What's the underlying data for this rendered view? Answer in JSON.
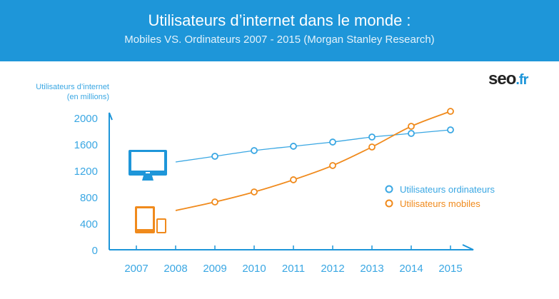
{
  "header": {
    "title": "Utilisateurs d’internet dans le monde :",
    "subtitle": "Mobiles VS. Ordinateurs 2007 - 2015 (Morgan Stanley Research)"
  },
  "logo": {
    "main": "seo",
    "suffix": ".fr"
  },
  "colors": {
    "header": "#1e96d9",
    "desktop": "#3aa7e3",
    "mobile": "#f08a1c",
    "axis": "#1e96d9"
  },
  "chart_data": {
    "type": "line",
    "title": "Utilisateurs d’internet dans le monde",
    "ylabel_line1": "Utilisateurs d’internet",
    "ylabel_line2": "(en millions)",
    "xlabel": "",
    "x": [
      "2007",
      "2008",
      "2009",
      "2010",
      "2011",
      "2012",
      "2013",
      "2014",
      "2015"
    ],
    "yticks": [
      0,
      400,
      800,
      1200,
      1600,
      2000
    ],
    "ylim": [
      0,
      2000
    ],
    "legend_position": "right",
    "series": [
      {
        "name": "Utilisateurs ordinateurs",
        "color": "#3aa7e3",
        "icon": "desktop-icon",
        "values": [
          null,
          1330,
          1416,
          1503,
          1568,
          1632,
          1708,
          1762,
          1816
        ]
      },
      {
        "name": "Utilisateurs mobiles",
        "color": "#f08a1c",
        "icon": "tablet-phone-icon",
        "values": [
          null,
          595,
          724,
          876,
          1060,
          1276,
          1557,
          1870,
          2097
        ]
      }
    ]
  }
}
